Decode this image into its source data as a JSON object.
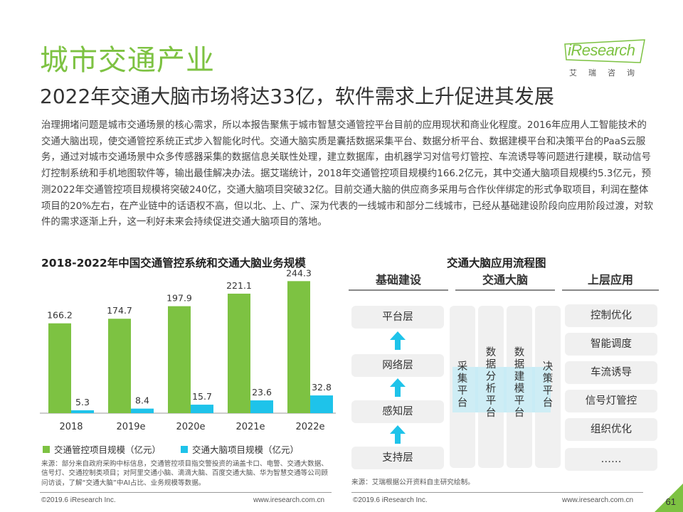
{
  "header": {
    "title": "城市交通产业",
    "subtitle": "2022年交通大脑市场将达33亿，软件需求上升促进其发展",
    "logo_text": "iResearch",
    "logo_sub": "艾瑞咨询"
  },
  "body_text": "治理拥堵问题是城市交通场景的核心需求，所以本报告聚焦于城市智慧交通管控平台目前的应用现状和商业化程度。2016年应用人工智能技术的交通大脑出现，使交通管控系统正式步入智能化时代。交通大脑实质是囊括数据采集平台、数据分析平台、数据建模平台和决策平台的PaaS云服务，通过对城市交通场景中众多传感器采集的数据信息关联性处理，建立数据库，由机器学习对信号灯管控、车流诱导等问题进行建模，联动信号灯控制系统和手机地图软件等，输出最佳解决办法。据艾瑞统计，2018年交通管控项目规模约166.2亿元，其中交通大脑项目规模约5.3亿元，预测2022年交通管控项目规模将突破240亿，交通大脑项目突破32亿。目前交通大脑的供应商多采用与合作伙伴绑定的形式争取项目，利润在整体项目的20%左右，在产业链中的话语权不高，但以北、上、广、深为代表的一线城市和部分二线城市，已经从基础建设阶段向应用阶段过渡，对软件的需求逐渐上升，这一利好未来会持续促进交通大脑项目的落地。",
  "chart_data": {
    "type": "bar",
    "title": "2018-2022年中国交通管控系统和交通大脑业务规模",
    "categories": [
      "2018",
      "2019e",
      "2020e",
      "2021e",
      "2022e"
    ],
    "series": [
      {
        "name": "交通管控项目规模（亿元）",
        "values": [
          166.2,
          174.7,
          197.9,
          221.1,
          244.3
        ],
        "color": "#7dc242"
      },
      {
        "name": "交通大脑项目规模（亿元）",
        "values": [
          5.3,
          8.4,
          15.7,
          23.6,
          32.8
        ],
        "color": "#1ec3ea"
      }
    ],
    "ylim": [
      0,
      250
    ],
    "legend_position": "bottom",
    "grid": false
  },
  "chart_source": "来源：部分来自政府采购中标信息，交通管控项目指交警投资的涵盖卡口、电警、交通大数据、信号灯、交通控制类项目；对阿里交通小脑、滴滴大脑、百度交通大脑、华为智慧交通等公司顾问访谈，了解“交通大脑”中AI占比、业务规模等数据。",
  "flow": {
    "title": "交通大脑应用流程图",
    "headers": [
      "基础建设",
      "交通大脑",
      "上层应用"
    ],
    "layers": [
      "平台层",
      "网络层",
      "感知层",
      "支持层"
    ],
    "brain_columns": [
      "采集平台",
      "数据分析平台",
      "数据建模平台",
      "决策平台"
    ],
    "apps": [
      "控制优化",
      "智能调度",
      "车流诱导",
      "信号灯管控",
      "组织优化",
      "……"
    ],
    "source": "来源：艾瑞根据公开资料自主研究绘制。"
  },
  "footer": {
    "left_copyright": "©2019.6 iResearch Inc.",
    "left_url": "www.iresearch.com.cn",
    "right_copyright": "©2019.6 iResearch Inc.",
    "right_url": "www.iresearch.com.cn",
    "page": "61"
  },
  "colors": {
    "brand": "#7dc242",
    "accent": "#1ec3ea"
  }
}
